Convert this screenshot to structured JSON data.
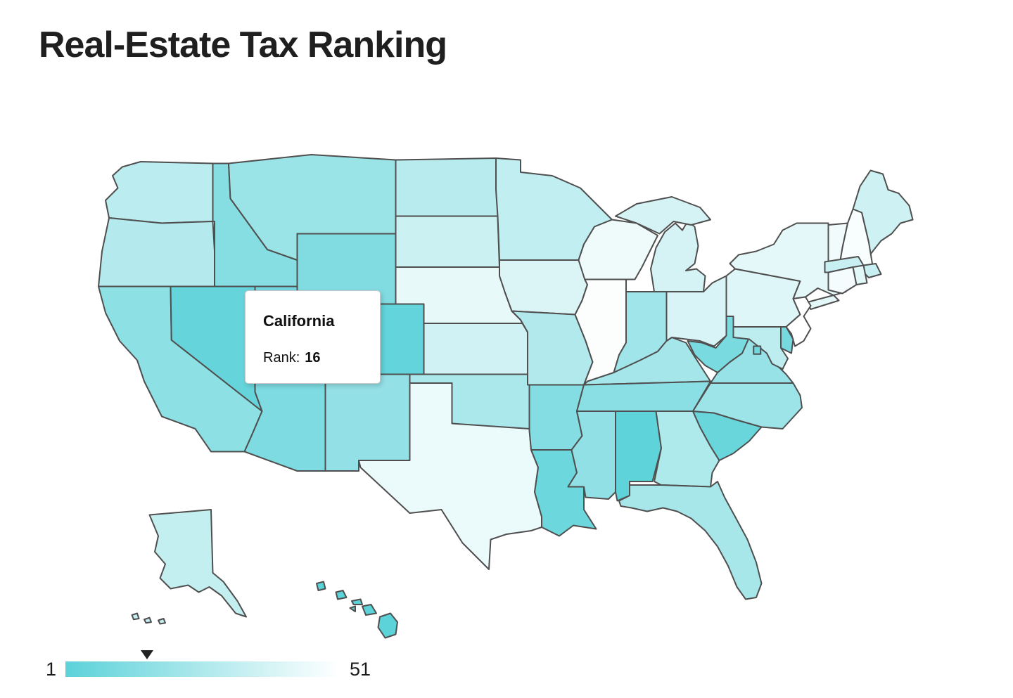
{
  "title": "Real-Estate Tax Ranking",
  "tooltip": {
    "state": "California",
    "rank_label": "Rank:",
    "rank": "16"
  },
  "legend": {
    "min": "1",
    "max": "51"
  },
  "colors": {
    "scale_start": "#5cd2d9",
    "scale_end": "#ffffff",
    "state_border": "#4f4f4f",
    "marker": "#222222",
    "title_text": "#1f1f1f"
  },
  "chart_data": {
    "type": "choropleth_map",
    "title": "Real-Estate Tax Ranking",
    "metric": "Real-estate tax rank (1 = lowest, 51 = highest)",
    "scale": {
      "min": 1,
      "max": 51
    },
    "legend_position": "bottom-left",
    "highlighted_state": {
      "name": "California",
      "rank": 16
    },
    "states": [
      {
        "name": "Hawaii",
        "abbr": "HI",
        "rank": 1
      },
      {
        "name": "Alabama",
        "abbr": "AL",
        "rank": 2
      },
      {
        "name": "Colorado",
        "abbr": "CO",
        "rank": 3
      },
      {
        "name": "Nevada",
        "abbr": "NV",
        "rank": 4
      },
      {
        "name": "South Carolina",
        "abbr": "SC",
        "rank": 5
      },
      {
        "name": "Louisiana",
        "abbr": "LA",
        "rank": 6
      },
      {
        "name": "District of Columbia",
        "abbr": "DC",
        "rank": 7
      },
      {
        "name": "Utah",
        "abbr": "UT",
        "rank": 8
      },
      {
        "name": "Delaware",
        "abbr": "DE",
        "rank": 9
      },
      {
        "name": "West Virginia",
        "abbr": "WV",
        "rank": 10
      },
      {
        "name": "Arizona",
        "abbr": "AZ",
        "rank": 11
      },
      {
        "name": "Wyoming",
        "abbr": "WY",
        "rank": 12
      },
      {
        "name": "Arkansas",
        "abbr": "AR",
        "rank": 13
      },
      {
        "name": "Idaho",
        "abbr": "ID",
        "rank": 14
      },
      {
        "name": "Tennessee",
        "abbr": "TN",
        "rank": 15
      },
      {
        "name": "California",
        "abbr": "CA",
        "rank": 16
      },
      {
        "name": "Mississippi",
        "abbr": "MS",
        "rank": 17
      },
      {
        "name": "New Mexico",
        "abbr": "NM",
        "rank": 18
      },
      {
        "name": "Virginia",
        "abbr": "VA",
        "rank": 19
      },
      {
        "name": "Montana",
        "abbr": "MT",
        "rank": 20
      },
      {
        "name": "North Carolina",
        "abbr": "NC",
        "rank": 21
      },
      {
        "name": "Indiana",
        "abbr": "IN",
        "rank": 22
      },
      {
        "name": "Kentucky",
        "abbr": "KY",
        "rank": 23
      },
      {
        "name": "Florida",
        "abbr": "FL",
        "rank": 24
      },
      {
        "name": "Oklahoma",
        "abbr": "OK",
        "rank": 25
      },
      {
        "name": "Georgia",
        "abbr": "GA",
        "rank": 26
      },
      {
        "name": "Missouri",
        "abbr": "MO",
        "rank": 27
      },
      {
        "name": "Oregon",
        "abbr": "OR",
        "rank": 28
      },
      {
        "name": "North Dakota",
        "abbr": "ND",
        "rank": 29
      },
      {
        "name": "Washington",
        "abbr": "WA",
        "rank": 30
      },
      {
        "name": "Maryland",
        "abbr": "MD",
        "rank": 31
      },
      {
        "name": "Minnesota",
        "abbr": "MN",
        "rank": 32
      },
      {
        "name": "Alaska",
        "abbr": "AK",
        "rank": 33
      },
      {
        "name": "Massachusetts",
        "abbr": "MA",
        "rank": 34
      },
      {
        "name": "South Dakota",
        "abbr": "SD",
        "rank": 35
      },
      {
        "name": "Maine",
        "abbr": "ME",
        "rank": 36
      },
      {
        "name": "Kansas",
        "abbr": "KS",
        "rank": 37
      },
      {
        "name": "Michigan",
        "abbr": "MI",
        "rank": 38
      },
      {
        "name": "Ohio",
        "abbr": "OH",
        "rank": 39
      },
      {
        "name": "Iowa",
        "abbr": "IA",
        "rank": 40
      },
      {
        "name": "Pennsylvania",
        "abbr": "PA",
        "rank": 41
      },
      {
        "name": "Rhode Island",
        "abbr": "RI",
        "rank": 42
      },
      {
        "name": "New York",
        "abbr": "NY",
        "rank": 43
      },
      {
        "name": "Nebraska",
        "abbr": "NE",
        "rank": 44
      },
      {
        "name": "Texas",
        "abbr": "TX",
        "rank": 45
      },
      {
        "name": "Wisconsin",
        "abbr": "WI",
        "rank": 46
      },
      {
        "name": "Vermont",
        "abbr": "VT",
        "rank": 47
      },
      {
        "name": "Connecticut",
        "abbr": "CT",
        "rank": 48
      },
      {
        "name": "New Hampshire",
        "abbr": "NH",
        "rank": 49
      },
      {
        "name": "Illinois",
        "abbr": "IL",
        "rank": 50
      },
      {
        "name": "New Jersey",
        "abbr": "NJ",
        "rank": 51
      }
    ]
  }
}
